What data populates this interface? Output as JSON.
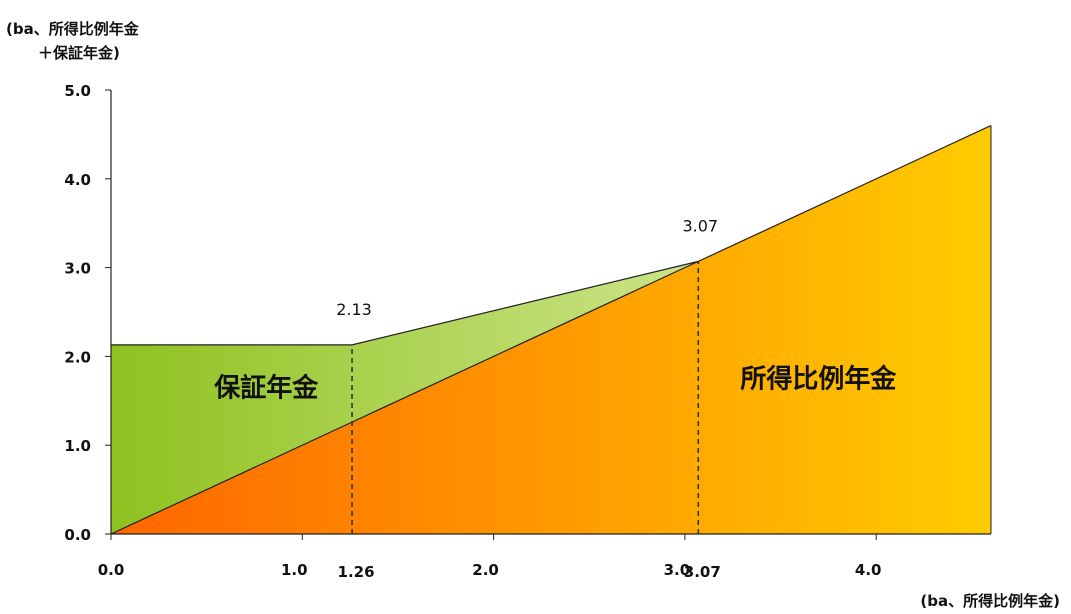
{
  "chart_data": {
    "type": "area",
    "ylabel_lines": [
      "(ba、所得比例年金",
      "＋保証年金)"
    ],
    "xlabel": "(ba、所得比例年金)",
    "xlim": [
      0,
      4.6
    ],
    "ylim": [
      0,
      5
    ],
    "x_ticks": [
      "0.0",
      "1.0",
      "2.0",
      "3.0",
      "4.0"
    ],
    "y_ticks": [
      "0.0",
      "1.0",
      "2.0",
      "3.0",
      "4.0",
      "5.0"
    ],
    "extra_x_labels": [
      "1.26",
      "3.07"
    ],
    "series": [
      {
        "name": "所得比例年金",
        "x": [
          0,
          1.26,
          3.07,
          4.6
        ],
        "y": [
          0,
          1.26,
          3.07,
          4.6
        ]
      },
      {
        "name": "保証年金",
        "x": [
          0,
          1.26,
          3.07
        ],
        "y": [
          2.13,
          2.13,
          3.07
        ]
      }
    ],
    "annotations": [
      {
        "text": "2.13",
        "x": 1.26,
        "y": 2.13
      },
      {
        "text": "3.07",
        "x": 3.07,
        "y": 3.07
      }
    ],
    "region_labels": [
      "保証年金",
      "所得比例年金"
    ],
    "grid": false,
    "colors": {
      "income_start": "#ff6600",
      "income_end": "#ffcc00",
      "guarantee_start": "#8ec21f",
      "guarantee_end": "#cde48a"
    }
  }
}
